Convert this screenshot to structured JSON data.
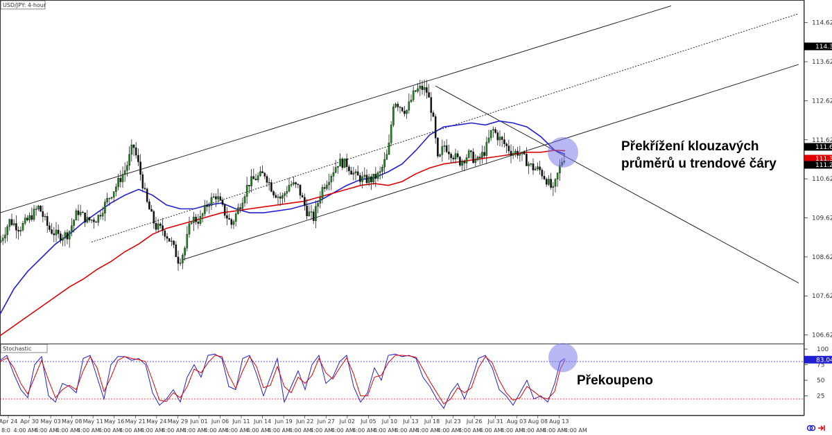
{
  "chart_data": [
    {
      "type": "candlestick",
      "title": "USD/JPY: 4-hour",
      "ylim": [
        106.4,
        115.2
      ],
      "y_ticks": [
        "114.62",
        "113.62",
        "112.62",
        "111.62",
        "110.62",
        "109.62",
        "108.62",
        "107.62",
        "106.62"
      ],
      "x_ticks": [
        "Apr 24",
        "Apr 30",
        "May 03",
        "May 08",
        "May 11",
        "May 16",
        "May 21",
        "May 24",
        "May 29",
        "Jun 01",
        "Jun 06",
        "Jun 11",
        "Jun 14",
        "Jun 19",
        "Jun 22",
        "Jun 27",
        "Jul 02",
        "Jul 05",
        "Jul 10",
        "Jul 13",
        "Jul 18",
        "Jul 23",
        "Jul 26",
        "Jul 31",
        "Aug 03",
        "Aug 08",
        "Aug 13"
      ],
      "x_time_label": "4:00 AM",
      "x_time_first": "8:0",
      "price_badges": [
        {
          "value": "114.30",
          "bg": "#000000",
          "fg": "#ffffff"
        },
        {
          "value": "111.68",
          "bg": "#000000",
          "fg": "#ffffff"
        },
        {
          "value": "111.34",
          "bg": "#e00000",
          "fg": "#ffffff"
        },
        {
          "value": "111.21",
          "bg": "#000000",
          "fg": "#ffffff"
        }
      ],
      "series": [
        {
          "name": "MA (blue)",
          "color": "#1f1fd1",
          "x": [
            0,
            20,
            40,
            60,
            80,
            100,
            120,
            140,
            160,
            180,
            200,
            220,
            240,
            260,
            280,
            300,
            320,
            340,
            360,
            380,
            400,
            420,
            440,
            460,
            480,
            500,
            520,
            540,
            560,
            580,
            600,
            620,
            640,
            660,
            680,
            700,
            720,
            740,
            760,
            780,
            800,
            815
          ],
          "values": [
            107.15,
            107.8,
            108.25,
            108.6,
            108.95,
            109.2,
            109.5,
            109.75,
            110.0,
            110.2,
            110.35,
            110.2,
            109.95,
            109.85,
            109.85,
            109.95,
            110.0,
            109.85,
            109.75,
            109.75,
            109.8,
            109.85,
            109.95,
            110.05,
            110.25,
            110.45,
            110.6,
            110.65,
            110.8,
            111.0,
            111.35,
            111.75,
            111.95,
            112.0,
            112.05,
            112.0,
            112.1,
            112.05,
            111.95,
            111.7,
            111.35,
            111.25
          ]
        },
        {
          "name": "MA (red)",
          "color": "#e00000",
          "x": [
            0,
            20,
            40,
            60,
            80,
            100,
            120,
            140,
            160,
            180,
            200,
            220,
            240,
            260,
            280,
            300,
            320,
            340,
            360,
            380,
            400,
            420,
            440,
            460,
            480,
            500,
            520,
            540,
            560,
            580,
            600,
            620,
            640,
            660,
            680,
            700,
            720,
            740,
            760,
            780,
            800,
            815
          ],
          "values": [
            106.6,
            106.85,
            107.1,
            107.35,
            107.6,
            107.85,
            108.05,
            108.3,
            108.5,
            108.75,
            108.95,
            109.2,
            109.35,
            109.45,
            109.55,
            109.65,
            109.75,
            109.8,
            109.85,
            109.9,
            109.95,
            110.0,
            110.05,
            110.15,
            110.25,
            110.35,
            110.45,
            110.5,
            110.45,
            110.55,
            110.75,
            110.9,
            111.0,
            111.05,
            111.1,
            111.15,
            111.2,
            111.25,
            111.3,
            111.3,
            111.35,
            111.34
          ]
        }
      ],
      "price_path": {
        "x": [
          0,
          14,
          28,
          42,
          56,
          70,
          84,
          98,
          112,
          126,
          140,
          154,
          168,
          182,
          192,
          200,
          212,
          224,
          236,
          248,
          258,
          266,
          276,
          288,
          300,
          312,
          324,
          334,
          346,
          358,
          370,
          382,
          394,
          406,
          418,
          430,
          442,
          452,
          464,
          476,
          488,
          500,
          512,
          524,
          536,
          548,
          560,
          568,
          576,
          586,
          598,
          608,
          616,
          624,
          632,
          640,
          652,
          664,
          676,
          688,
          700,
          710,
          718,
          728,
          738,
          748,
          758,
          768,
          778,
          788,
          798,
          806,
          812,
          815
        ],
        "values": [
          109.0,
          109.55,
          109.35,
          109.6,
          109.9,
          109.35,
          109.15,
          109.2,
          109.8,
          109.55,
          109.6,
          110.05,
          110.45,
          110.9,
          111.5,
          110.95,
          110.0,
          109.4,
          109.3,
          108.95,
          108.5,
          108.8,
          109.6,
          109.55,
          110.0,
          110.2,
          109.75,
          109.45,
          109.95,
          110.5,
          110.65,
          110.75,
          110.3,
          110.1,
          110.5,
          110.4,
          109.8,
          109.6,
          110.35,
          110.7,
          111.05,
          111.0,
          110.7,
          110.6,
          110.6,
          110.75,
          111.3,
          112.65,
          112.5,
          112.35,
          112.85,
          112.95,
          112.85,
          112.25,
          111.0,
          111.5,
          111.25,
          111.05,
          111.25,
          111.05,
          111.35,
          111.9,
          111.7,
          111.5,
          111.3,
          111.3,
          111.1,
          110.9,
          110.85,
          110.6,
          110.3,
          110.85,
          111.15,
          111.2
        ]
      },
      "trendlines": [
        {
          "style": "solid",
          "x": [
            0,
            968
          ],
          "values": [
            109.75,
            115.05
          ]
        },
        {
          "style": "dotted",
          "x": [
            132,
            1152
          ],
          "values": [
            109.0,
            114.85
          ]
        },
        {
          "style": "solid",
          "x": [
            264,
            1152
          ],
          "values": [
            108.55,
            113.55
          ]
        },
        {
          "style": "solid",
          "x": [
            628,
            1152
          ],
          "values": [
            113.0,
            107.95
          ]
        }
      ],
      "highlight_circles": [
        {
          "x": 812,
          "value": 111.3
        }
      ],
      "annotation": [
        "Překřížení klouzavých",
        "průměrů u trendové čáry"
      ]
    },
    {
      "type": "line",
      "title": "Stochastic",
      "ylim": [
        0,
        100
      ],
      "y_ticks": [
        "100",
        "75",
        "50",
        "25"
      ],
      "levels": [
        80,
        20
      ],
      "current_badges": [
        {
          "value": "83.04",
          "bg": "#1f1fd1",
          "fg": "#ffffff"
        }
      ],
      "series": [
        {
          "name": "%K",
          "color": "#1f1fd1",
          "x": [
            0,
            10,
            20,
            30,
            40,
            50,
            60,
            70,
            80,
            90,
            100,
            110,
            120,
            130,
            140,
            150,
            160,
            170,
            180,
            190,
            200,
            210,
            220,
            230,
            240,
            250,
            260,
            270,
            280,
            290,
            300,
            310,
            320,
            330,
            340,
            350,
            360,
            370,
            380,
            390,
            400,
            410,
            420,
            430,
            440,
            450,
            460,
            470,
            480,
            490,
            500,
            510,
            520,
            530,
            540,
            550,
            560,
            570,
            580,
            590,
            600,
            610,
            620,
            630,
            640,
            650,
            660,
            670,
            680,
            690,
            700,
            710,
            720,
            730,
            740,
            750,
            760,
            770,
            780,
            790,
            800,
            808,
            815
          ],
          "values": [
            82,
            90,
            60,
            35,
            22,
            75,
            88,
            25,
            15,
            45,
            40,
            30,
            85,
            90,
            55,
            20,
            75,
            88,
            88,
            82,
            85,
            75,
            30,
            10,
            20,
            35,
            15,
            55,
            75,
            55,
            90,
            92,
            85,
            40,
            35,
            85,
            90,
            60,
            25,
            55,
            85,
            15,
            40,
            65,
            35,
            75,
            90,
            45,
            55,
            80,
            90,
            40,
            15,
            30,
            70,
            50,
            90,
            92,
            88,
            90,
            85,
            55,
            40,
            20,
            5,
            30,
            45,
            20,
            50,
            85,
            90,
            70,
            35,
            25,
            10,
            30,
            50,
            20,
            25,
            15,
            45,
            80,
            85
          ]
        },
        {
          "name": "%D",
          "color": "#e00000",
          "x": [
            0,
            10,
            20,
            30,
            40,
            50,
            60,
            70,
            80,
            90,
            100,
            110,
            120,
            130,
            140,
            150,
            160,
            170,
            180,
            190,
            200,
            210,
            220,
            230,
            240,
            250,
            260,
            270,
            280,
            290,
            300,
            310,
            320,
            330,
            340,
            350,
            360,
            370,
            380,
            390,
            400,
            410,
            420,
            430,
            440,
            450,
            460,
            470,
            480,
            490,
            500,
            510,
            520,
            530,
            540,
            550,
            560,
            570,
            580,
            590,
            600,
            610,
            620,
            630,
            640,
            650,
            660,
            670,
            680,
            690,
            700,
            710,
            720,
            730,
            740,
            750,
            760,
            770,
            780,
            790,
            800,
            808,
            815
          ],
          "values": [
            80,
            86,
            70,
            45,
            28,
            55,
            82,
            50,
            22,
            35,
            42,
            35,
            65,
            88,
            70,
            32,
            55,
            82,
            88,
            85,
            83,
            80,
            50,
            18,
            16,
            30,
            22,
            40,
            68,
            62,
            78,
            90,
            88,
            58,
            37,
            65,
            88,
            72,
            38,
            42,
            72,
            40,
            30,
            55,
            45,
            58,
            85,
            62,
            52,
            70,
            86,
            60,
            25,
            25,
            55,
            58,
            78,
            90,
            90,
            89,
            87,
            68,
            48,
            30,
            12,
            20,
            38,
            30,
            38,
            70,
            88,
            78,
            50,
            30,
            18,
            22,
            40,
            32,
            23,
            20,
            32,
            68,
            83
          ]
        }
      ],
      "highlight_circles": [
        {
          "x": 812,
          "value": 92
        }
      ],
      "annotation": "Překoupeno"
    }
  ]
}
